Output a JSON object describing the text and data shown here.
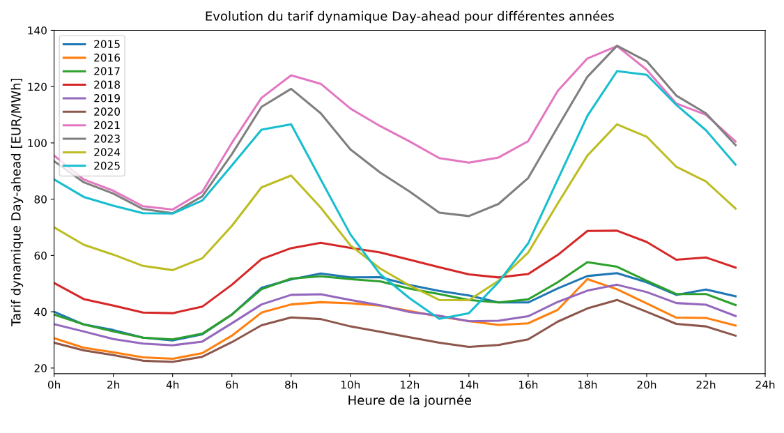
{
  "chart_data": {
    "type": "line",
    "title": "Evolution du tarif dynamique Day-ahead pour différentes années",
    "xlabel": "Heure de la journée",
    "ylabel": "Tarif dynamique Day-ahead [EUR/MWh]",
    "x": [
      0,
      1,
      2,
      3,
      4,
      5,
      6,
      7,
      8,
      9,
      10,
      11,
      12,
      13,
      14,
      15,
      16,
      17,
      18,
      19,
      20,
      21,
      22,
      23
    ],
    "xlim": [
      0,
      24
    ],
    "xticks": [
      {
        "value": 0,
        "label": "0h"
      },
      {
        "value": 2,
        "label": "2h"
      },
      {
        "value": 4,
        "label": "4h"
      },
      {
        "value": 6,
        "label": "6h"
      },
      {
        "value": 8,
        "label": "8h"
      },
      {
        "value": 10,
        "label": "10h"
      },
      {
        "value": 12,
        "label": "12h"
      },
      {
        "value": 14,
        "label": "14h"
      },
      {
        "value": 16,
        "label": "16h"
      },
      {
        "value": 18,
        "label": "18h"
      },
      {
        "value": 20,
        "label": "20h"
      },
      {
        "value": 22,
        "label": "22h"
      },
      {
        "value": 24,
        "label": "24h"
      }
    ],
    "ylim": [
      18,
      140
    ],
    "yticks": [
      20,
      40,
      60,
      80,
      100,
      120,
      140
    ],
    "grid": false,
    "legend": "top left",
    "marker": "none",
    "line_style": "solid",
    "series": [
      {
        "name": "2015",
        "color": "#1f77b4",
        "values": [
          40,
          35.5,
          33.5,
          30.8,
          29.8,
          32,
          39,
          48.5,
          51.5,
          53.6,
          52.2,
          52.3,
          49.5,
          47.4,
          45.8,
          43.3,
          43.3,
          48.3,
          52.7,
          53.7,
          50.5,
          46,
          47.9,
          45.5
        ]
      },
      {
        "name": "2016",
        "color": "#ff7f0e",
        "values": [
          30.6,
          27.2,
          25.6,
          23.8,
          23.3,
          25.3,
          31.5,
          39.7,
          42.6,
          43.4,
          43,
          42.2,
          40.3,
          38.3,
          36.7,
          35.3,
          35.9,
          40.7,
          51.6,
          48,
          43,
          37.9,
          37.8,
          35.1
        ]
      },
      {
        "name": "2017",
        "color": "#2ca02c",
        "values": [
          39,
          35.5,
          33,
          30.8,
          30.2,
          32.2,
          39,
          48,
          51.8,
          52.6,
          51.6,
          50.8,
          48.2,
          46.3,
          44.2,
          43.3,
          44.4,
          50.5,
          57.6,
          56,
          51,
          46.3,
          46.3,
          42.4
        ]
      },
      {
        "name": "2018",
        "color": "#d62728",
        "values": [
          50.2,
          44.5,
          42.2,
          39.7,
          39.5,
          41.8,
          49.6,
          58.7,
          62.6,
          64.5,
          62.7,
          61.1,
          58.5,
          55.8,
          53.3,
          52.2,
          53.4,
          60.2,
          68.7,
          68.8,
          64.8,
          58.5,
          59.3,
          55.7
        ]
      },
      {
        "name": "2019",
        "color": "#9467bd",
        "values": [
          35.6,
          33,
          30.3,
          28.7,
          28.1,
          29.4,
          35.9,
          42.6,
          46,
          46.2,
          44.2,
          42.3,
          39.9,
          38.6,
          36.6,
          36.8,
          38.4,
          43.5,
          47.5,
          49.6,
          47,
          43.1,
          42.5,
          38.5
        ]
      },
      {
        "name": "2020",
        "color": "#8c564b",
        "values": [
          29,
          26.3,
          24.6,
          22.6,
          22.2,
          24,
          29.2,
          35.2,
          38,
          37.4,
          34.8,
          32.9,
          30.9,
          29,
          27.5,
          28.2,
          30.2,
          36.5,
          41.2,
          44.2,
          40,
          35.7,
          34.8,
          31.5
        ]
      },
      {
        "name": "2021",
        "color": "#e377c2",
        "values": [
          95.5,
          87,
          83,
          77.5,
          76.3,
          82.6,
          100,
          116,
          124,
          121,
          112.2,
          106,
          100.5,
          94.6,
          93,
          94.8,
          100.6,
          118.5,
          130,
          134.4,
          126,
          114,
          110,
          100.5
        ]
      },
      {
        "name": "2023",
        "color": "#7f7f7f",
        "values": [
          93.5,
          86,
          82,
          76.5,
          75,
          81,
          96,
          112.8,
          119.2,
          110.5,
          97.7,
          89.5,
          82.7,
          75.2,
          74,
          78.3,
          87.5,
          105.7,
          123.5,
          134.5,
          129,
          116.8,
          110.5,
          99.2
        ]
      },
      {
        "name": "2024",
        "color": "#bcbd22",
        "values": [
          70,
          63.8,
          60.3,
          56.3,
          54.8,
          59,
          70.5,
          84.2,
          88.4,
          77,
          63.6,
          55.4,
          49.3,
          44.2,
          44.1,
          51,
          61,
          78.5,
          95.5,
          106.6,
          102.2,
          91.5,
          86.3,
          76.7
        ]
      },
      {
        "name": "2025",
        "color": "#17becf",
        "values": [
          87,
          80.8,
          77.7,
          75,
          74.9,
          79.5,
          92,
          104.7,
          106.6,
          87,
          67.5,
          53.4,
          44.8,
          37.5,
          39.5,
          50.5,
          64.3,
          87,
          109.6,
          125.5,
          124.2,
          113.5,
          104.5,
          92.3
        ]
      }
    ]
  }
}
